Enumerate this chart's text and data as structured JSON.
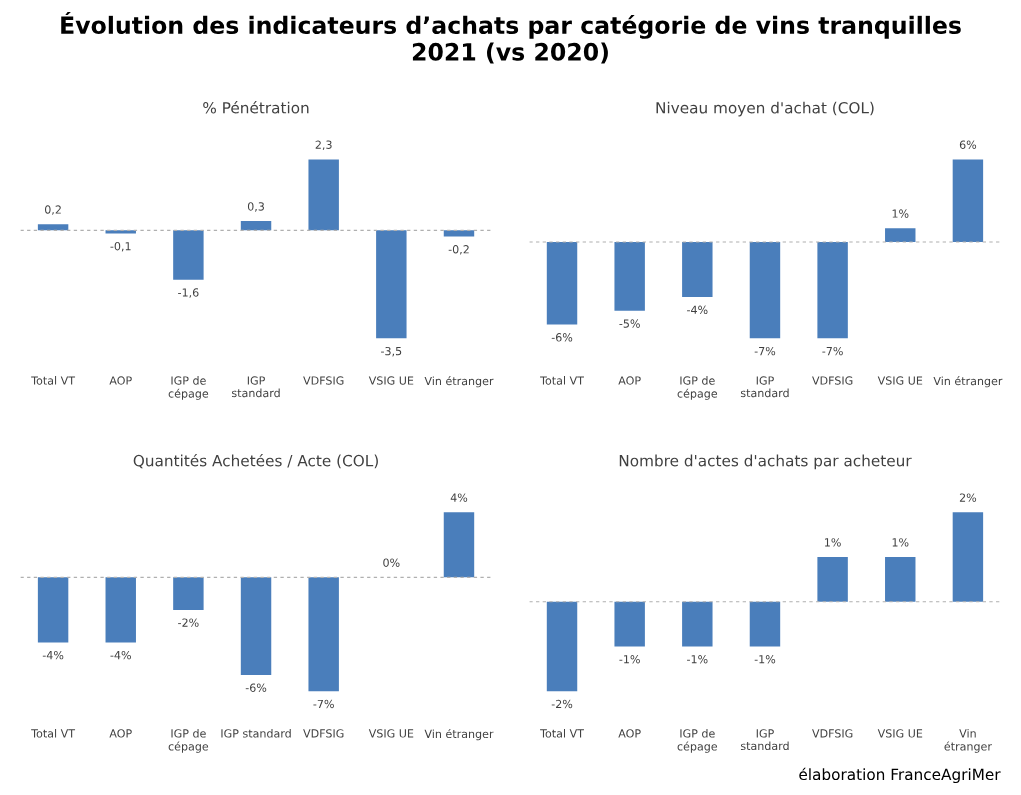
{
  "chart_data": [
    {
      "type": "bar",
      "title": "% Pénétration",
      "categories": [
        "Total VT",
        "AOP",
        "IGP de\ncépage",
        "IGP\nstandard",
        "VDFSIG",
        "VSIG UE",
        "Vin étranger"
      ],
      "color": "#4a7ebb",
      "values": [
        0.2,
        -0.1,
        -1.6,
        0.3,
        2.3,
        -3.5,
        -0.2
      ],
      "value_labels": [
        "0,2",
        "-0,1",
        "-1,6",
        "0,3",
        "2,3",
        "-3,5",
        "-0,2"
      ],
      "ref_lines": [
        {
          "axis": "y",
          "value": 0,
          "color": "#b0b0b0",
          "line_style": "dashed"
        }
      ],
      "annotations": [
        "Évolution des indicateurs d’achats par catégorie de vins tranquilles\n2021 (vs 2020)"
      ]
    },
    {
      "type": "bar",
      "title": "Niveau moyen d'achat (COL)",
      "categories": [
        "Total VT",
        "AOP",
        "IGP de\ncépage",
        "IGP\nstandard",
        "VDFSIG",
        "VSIG UE",
        "Vin étranger"
      ],
      "color": "#4a7ebb",
      "values": [
        -6,
        -5,
        -4,
        -7,
        -7,
        1,
        6
      ],
      "value_labels": [
        "-6%",
        "-5%",
        "-4%",
        "-7%",
        "-7%",
        "1%",
        "6%"
      ],
      "ref_lines": [
        {
          "axis": "y",
          "value": 0,
          "color": "#b0b0b0",
          "line_style": "dashed"
        }
      ]
    },
    {
      "type": "bar",
      "title": "Quantités Achetées / Acte (COL)",
      "categories": [
        "Total VT",
        "AOP",
        "IGP de\ncépage",
        "IGP standard",
        "VDFSIG",
        "VSIG UE",
        "Vin étranger"
      ],
      "color": "#4a7ebb",
      "values": [
        -4,
        -4,
        -2,
        -6,
        -7,
        0,
        4
      ],
      "value_labels": [
        "-4%",
        "-4%",
        "-2%",
        "-6%",
        "-7%",
        "0%",
        "4%"
      ],
      "ref_lines": [
        {
          "axis": "y",
          "value": 0,
          "color": "#b0b0b0",
          "line_style": "dashed"
        }
      ]
    },
    {
      "type": "bar",
      "title": "Nombre d'actes d'achats par acheteur",
      "categories": [
        "Total VT",
        "AOP",
        "IGP de\ncépage",
        "IGP\nstandard",
        "VDFSIG",
        "VSIG UE",
        "Vin\nétranger"
      ],
      "color": "#4a7ebb",
      "values": [
        -2,
        -1,
        -1,
        -1,
        1,
        1,
        2
      ],
      "value_labels": [
        "-2%",
        "-1%",
        "-1%",
        "-1%",
        "1%",
        "1%",
        "2%"
      ],
      "ref_lines": [
        {
          "axis": "y",
          "value": 0,
          "color": "#b0b0b0",
          "line_style": "dashed"
        }
      ],
      "annotations": [
        "élaboration FranceAgriMer"
      ]
    }
  ]
}
